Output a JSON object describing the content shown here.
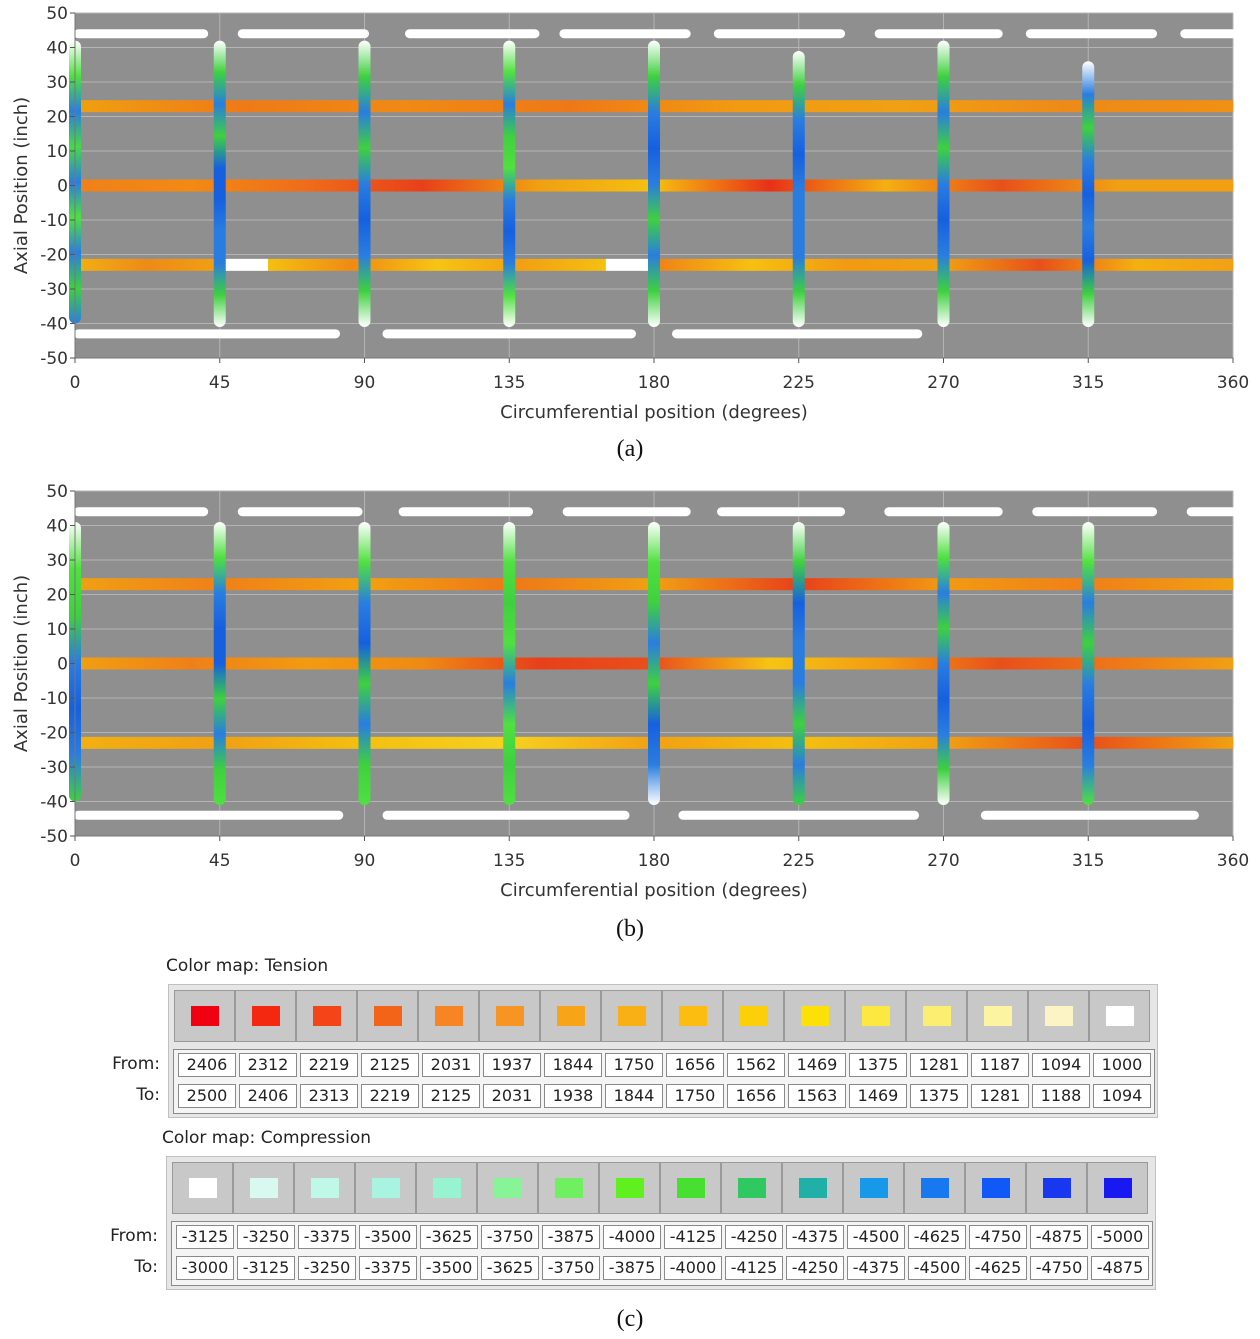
{
  "chart_data": [
    {
      "type": "scatter",
      "panel": "(a)",
      "xlabel": "Circumferential position (degrees)",
      "ylabel": "Axial Position (inch)",
      "xlim": [
        0,
        360
      ],
      "ylim": [
        -50,
        50
      ],
      "xticks": [
        0,
        45,
        90,
        135,
        180,
        225,
        270,
        315,
        360
      ],
      "yticks": [
        50,
        40,
        30,
        20,
        10,
        0,
        -10,
        -20,
        -30,
        -40,
        -50
      ],
      "grid": true,
      "background": "#8f8f8f",
      "hoop_rows": [
        {
          "y": 23,
          "segments": [
            {
              "x": [
                0,
                360
              ],
              "stops": [
                "#f0a010",
                "#ee7a18",
                "#f08a14",
                "#ee7818",
                "#f29a12",
                "#f0a014",
                "#ee8a18",
                "#f09014"
              ]
            }
          ]
        },
        {
          "y": 0,
          "segments": [
            {
              "x": [
                0,
                360
              ],
              "stops": [
                "#ef8018",
                "#f28a14",
                "#ef6c1a",
                "#e8401a",
                "#f0a012",
                "#f6c010",
                "#e83018",
                "#f4b010",
                "#e8501a",
                "#f0a014",
                "#f2a012"
              ]
            }
          ]
        },
        {
          "y": -23,
          "segments": [
            {
              "x": [
                0,
                45
              ],
              "stops": [
                "#f2b012",
                "#ee8a18",
                "#f0a014"
              ]
            },
            {
              "x": [
                45,
                60
              ],
              "stops": [
                "#ffffff",
                "#ffffff"
              ]
            },
            {
              "x": [
                60,
                165
              ],
              "stops": [
                "#f4c010",
                "#f08a14",
                "#f6c414",
                "#f2a012",
                "#f4c012"
              ]
            },
            {
              "x": [
                165,
                180
              ],
              "stops": [
                "#ffffff",
                "#ffffff"
              ]
            },
            {
              "x": [
                180,
                360
              ],
              "stops": [
                "#ef8018",
                "#f6c010",
                "#f29a12",
                "#f0a014",
                "#e8501a",
                "#f4b010",
                "#f2a014"
              ]
            }
          ]
        }
      ],
      "axial_columns": [
        {
          "x": 0,
          "y": [
            -40,
            42
          ],
          "stops": [
            "#2a7de0",
            "#3fd040",
            "#2a7de0",
            "#50e040",
            "#2a7de0",
            "#48d848",
            "#2a7de0",
            "#50e040",
            "#ffffff"
          ]
        },
        {
          "x": 45,
          "y": [
            -41,
            42
          ],
          "stops": [
            "#ffffff",
            "#3fd040",
            "#2a7de0",
            "#2a7de0",
            "#1660e0",
            "#1660e0",
            "#3fd040",
            "#2a7de0",
            "#3fd040",
            "#ffffff"
          ]
        },
        {
          "x": 90,
          "y": [
            -41,
            42
          ],
          "stops": [
            "#ffffff",
            "#3fd040",
            "#2a7de0",
            "#1660e0",
            "#2a7de0",
            "#3fd040",
            "#2a7de0",
            "#3fd040",
            "#ffffff"
          ]
        },
        {
          "x": 135,
          "y": [
            -41,
            42
          ],
          "stops": [
            "#ffffff",
            "#50e040",
            "#2a7de0",
            "#1660e0",
            "#2a7de0",
            "#50e040",
            "#3fd040",
            "#2a7de0",
            "#50e040",
            "#ffffff"
          ]
        },
        {
          "x": 180,
          "y": [
            -41,
            42
          ],
          "stops": [
            "#ffffff",
            "#3fd040",
            "#2a7de0",
            "#3fd040",
            "#2a7de0",
            "#1660e0",
            "#2a7de0",
            "#3fd040",
            "#ffffff"
          ]
        },
        {
          "x": 225,
          "y": [
            -41,
            39
          ],
          "stops": [
            "#ffffff",
            "#3fd040",
            "#2a7de0",
            "#2a7de0",
            "#2a7de0",
            "#1660e0",
            "#2a7de0",
            "#3fd040",
            "#ffffff"
          ]
        },
        {
          "x": 270,
          "y": [
            -41,
            42
          ],
          "stops": [
            "#ffffff",
            "#3fd040",
            "#2a7de0",
            "#1660e0",
            "#2a7de0",
            "#3fd040",
            "#2a7de0",
            "#3fd040",
            "#ffffff"
          ]
        },
        {
          "x": 315,
          "y": [
            -41,
            36
          ],
          "stops": [
            "#ffffff",
            "#3fd040",
            "#1660e0",
            "#2a7de0",
            "#1660e0",
            "#2a7de0",
            "#3fd040",
            "#2a7de0",
            "#ffffff"
          ]
        }
      ],
      "reference_lines": [
        {
          "y": 44,
          "segments": [
            [
              1,
              40
            ],
            [
              52,
              90
            ],
            [
              104,
              143
            ],
            [
              152,
              190
            ],
            [
              200,
              238
            ],
            [
              250,
              287
            ],
            [
              297,
              335
            ],
            [
              345,
              360
            ]
          ]
        },
        {
          "y": -43,
          "segments": [
            [
              1,
              81
            ],
            [
              97,
              173
            ],
            [
              187,
              262
            ]
          ]
        }
      ]
    },
    {
      "type": "scatter",
      "panel": "(b)",
      "xlabel": "Circumferential position (degrees)",
      "ylabel": "Axial Position (inch)",
      "xlim": [
        0,
        360
      ],
      "ylim": [
        -50,
        50
      ],
      "xticks": [
        0,
        45,
        90,
        135,
        180,
        225,
        270,
        315,
        360
      ],
      "yticks": [
        50,
        40,
        30,
        20,
        10,
        0,
        -10,
        -20,
        -30,
        -40,
        -50
      ],
      "grid": true,
      "background": "#8f8f8f",
      "hoop_rows": [
        {
          "y": 23,
          "segments": [
            {
              "x": [
                0,
                360
              ],
              "stops": [
                "#f0a014",
                "#ef8018",
                "#f2a012",
                "#ee7818",
                "#f0a014",
                "#e8401a",
                "#f29a12",
                "#ef8018",
                "#f0a014"
              ]
            }
          ]
        },
        {
          "y": 0,
          "segments": [
            {
              "x": [
                0,
                360
              ],
              "stops": [
                "#f0a012",
                "#ef8018",
                "#f29a12",
                "#ef8a14",
                "#e8401a",
                "#e8501a",
                "#f6c414",
                "#f29a12",
                "#e8501a",
                "#ee7818",
                "#f0a014"
              ]
            }
          ]
        },
        {
          "y": -23,
          "segments": [
            {
              "x": [
                0,
                360
              ],
              "stops": [
                "#f2b012",
                "#f0a014",
                "#f4c010",
                "#f6d020",
                "#f2a012",
                "#f4c010",
                "#f0a014",
                "#e8501a",
                "#f2a012"
              ]
            }
          ]
        }
      ],
      "axial_columns": [
        {
          "x": 0,
          "y": [
            -40,
            41
          ],
          "stops": [
            "#3fd040",
            "#2a7de0",
            "#1660e0",
            "#2a7de0",
            "#3fd040",
            "#50e040",
            "#ffffff"
          ]
        },
        {
          "x": 45,
          "y": [
            -41,
            41
          ],
          "stops": [
            "#50e040",
            "#3fd040",
            "#2a7de0",
            "#3fd040",
            "#1660e0",
            "#1660e0",
            "#2a7de0",
            "#50e040",
            "#ffffff"
          ]
        },
        {
          "x": 90,
          "y": [
            -41,
            41
          ],
          "stops": [
            "#50e040",
            "#3fd040",
            "#2a7de0",
            "#3fd040",
            "#1660e0",
            "#2a7de0",
            "#50e040",
            "#ffffff"
          ]
        },
        {
          "x": 135,
          "y": [
            -41,
            41
          ],
          "stops": [
            "#50e040",
            "#3fd040",
            "#50e040",
            "#2a7de0",
            "#50e040",
            "#3fd040",
            "#50e040",
            "#ffffff"
          ]
        },
        {
          "x": 180,
          "y": [
            -41,
            41
          ],
          "stops": [
            "#ffffff",
            "#2a7de0",
            "#1660e0",
            "#3fd040",
            "#2a7de0",
            "#3fd040",
            "#50e040",
            "#ffffff"
          ]
        },
        {
          "x": 225,
          "y": [
            -41,
            41
          ],
          "stops": [
            "#3fd040",
            "#2a7de0",
            "#3fd040",
            "#2a7de0",
            "#2a7de0",
            "#1660e0",
            "#3fd040",
            "#ffffff"
          ]
        },
        {
          "x": 270,
          "y": [
            -41,
            41
          ],
          "stops": [
            "#ffffff",
            "#3fd040",
            "#2a7de0",
            "#1660e0",
            "#2a7de0",
            "#3fd040",
            "#2a7de0",
            "#50e040",
            "#ffffff"
          ]
        },
        {
          "x": 315,
          "y": [
            -41,
            41
          ],
          "stops": [
            "#50e040",
            "#2a7de0",
            "#1660e0",
            "#2a7de0",
            "#3fd040",
            "#2a7de0",
            "#50e040",
            "#ffffff"
          ]
        }
      ],
      "reference_lines": [
        {
          "y": 44,
          "segments": [
            [
              1,
              40
            ],
            [
              52,
              88
            ],
            [
              102,
              141
            ],
            [
              153,
              190
            ],
            [
              201,
              238
            ],
            [
              253,
              287
            ],
            [
              299,
              335
            ],
            [
              347,
              360
            ]
          ]
        },
        {
          "y": -44,
          "segments": [
            [
              1,
              82
            ],
            [
              97,
              171
            ],
            [
              189,
              261
            ],
            [
              283,
              348
            ]
          ]
        }
      ]
    }
  ],
  "panel_labels": {
    "a": "(a)",
    "b": "(b)",
    "c": "(c)"
  },
  "colormaps": {
    "row_labels": {
      "from": "From:",
      "to": "To:"
    },
    "tension": {
      "title": "Color map: Tension",
      "colors": [
        "#f00010",
        "#f42810",
        "#f44418",
        "#f46418",
        "#f88424",
        "#f89424",
        "#f8a418",
        "#f8b014",
        "#fcbc10",
        "#fcd008",
        "#fce008",
        "#fce840",
        "#fcee70",
        "#fcf4a0",
        "#fcf4c4",
        "#ffffff"
      ],
      "from": [
        "2406",
        "2312",
        "2219",
        "2125",
        "2031",
        "1937",
        "1844",
        "1750",
        "1656",
        "1562",
        "1469",
        "1375",
        "1281",
        "1187",
        "1094",
        "1000"
      ],
      "to": [
        "2500",
        "2406",
        "2313",
        "2219",
        "2125",
        "2031",
        "1938",
        "1844",
        "1750",
        "1656",
        "1563",
        "1469",
        "1375",
        "1281",
        "1188",
        "1094"
      ]
    },
    "compression": {
      "title": "Color map: Compression",
      "colors": [
        "#ffffff",
        "#d8f8f0",
        "#c0f8e8",
        "#a8f4e0",
        "#98f4d0",
        "#88f498",
        "#70f060",
        "#60f020",
        "#48e030",
        "#30c860",
        "#20b0a8",
        "#1898e8",
        "#1878f0",
        "#1058f8",
        "#1838f0",
        "#1818f0"
      ],
      "from": [
        "-3125",
        "-3250",
        "-3375",
        "-3500",
        "-3625",
        "-3750",
        "-3875",
        "-4000",
        "-4125",
        "-4250",
        "-4375",
        "-4500",
        "-4625",
        "-4750",
        "-4875",
        "-5000"
      ],
      "to": [
        "-3000",
        "-3125",
        "-3250",
        "-3375",
        "-3500",
        "-3625",
        "-3750",
        "-3875",
        "-4000",
        "-4125",
        "-4250",
        "-4375",
        "-4500",
        "-4625",
        "-4750",
        "-4875"
      ]
    }
  }
}
